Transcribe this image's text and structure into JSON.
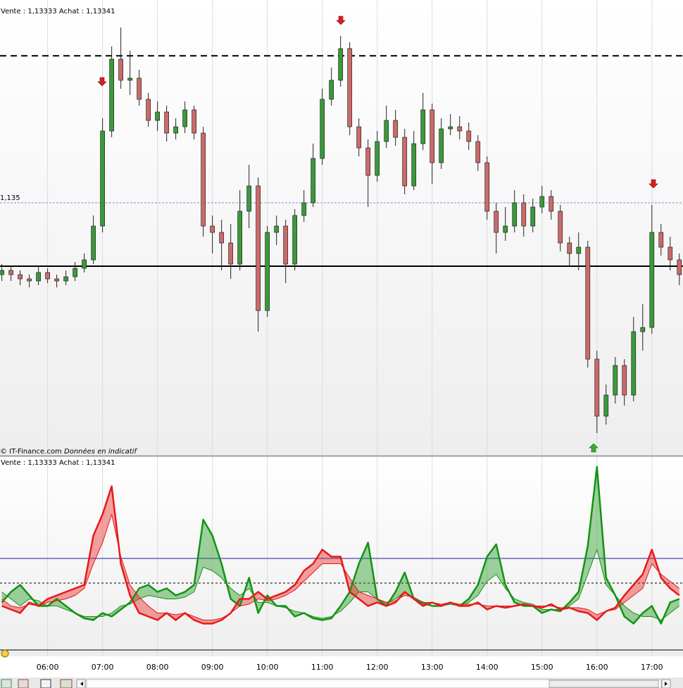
{
  "chart_data": [
    {
      "type": "candlestick",
      "title": "Vente : 1,13333 Achat : 1,13341",
      "source": "© IT-Finance.com",
      "note": "Données en indicatif",
      "up_color": "#3a9a3a",
      "down_color": "#cc6a6a",
      "x": [
        "05:10",
        "05:20",
        "05:30",
        "05:40",
        "05:50",
        "06:00",
        "06:10",
        "06:20",
        "06:30",
        "06:40",
        "06:50",
        "07:00",
        "07:10",
        "07:20",
        "07:30",
        "07:40",
        "07:50",
        "08:00",
        "08:10",
        "08:20",
        "08:30",
        "08:40",
        "08:50",
        "09:00",
        "09:10",
        "09:20",
        "09:30",
        "09:40",
        "09:50",
        "10:00",
        "10:10",
        "10:20",
        "10:30",
        "10:40",
        "10:50",
        "11:00",
        "11:10",
        "11:20",
        "11:30",
        "11:40",
        "11:50",
        "12:00",
        "12:10",
        "12:20",
        "12:30",
        "12:40",
        "12:50",
        "13:00",
        "13:10",
        "13:20",
        "13:30",
        "13:40",
        "13:50",
        "14:00",
        "14:10",
        "14:20",
        "14:30",
        "14:40",
        "14:50",
        "15:00",
        "15:10",
        "15:20",
        "15:30",
        "15:40",
        "15:50",
        "16:00",
        "16:10",
        "16:20",
        "16:30",
        "16:40",
        "16:50",
        "17:00",
        "17:10",
        "17:20",
        "17:30"
      ],
      "open": [
        1.1333,
        1.1334,
        1.1333,
        1.1332,
        1.13315,
        1.13335,
        1.1332,
        1.13315,
        1.13325,
        1.13345,
        1.13365,
        1.13445,
        1.1367,
        1.1384,
        1.1379,
        1.13795,
        1.13745,
        1.13695,
        1.13715,
        1.13665,
        1.1368,
        1.1372,
        1.13665,
        1.13445,
        1.1343,
        1.13405,
        1.13355,
        1.1348,
        1.1354,
        1.13245,
        1.1343,
        1.13445,
        1.13355,
        1.1347,
        1.135,
        1.13605,
        1.13745,
        1.1379,
        1.13865,
        1.1368,
        1.1363,
        1.13565,
        1.13645,
        1.13695,
        1.13655,
        1.1354,
        1.1364,
        1.1372,
        1.13595,
        1.13675,
        1.1368,
        1.1367,
        1.13645,
        1.13595,
        1.1348,
        1.1343,
        1.13445,
        1.135,
        1.13445,
        1.1349,
        1.13515,
        1.1348,
        1.13405,
        1.1338,
        1.13395,
        1.1313,
        1.12995,
        1.13045,
        1.13115,
        1.13045,
        1.13195,
        1.13205,
        1.1343,
        1.13395,
        1.13365
      ],
      "high": [
        1.13355,
        1.1335,
        1.1334,
        1.1333,
        1.1335,
        1.13345,
        1.1333,
        1.1334,
        1.1336,
        1.1338,
        1.1347,
        1.137,
        1.1387,
        1.13915,
        1.1386,
        1.13815,
        1.1376,
        1.1374,
        1.1373,
        1.137,
        1.1374,
        1.1373,
        1.1368,
        1.1347,
        1.1346,
        1.1345,
        1.1353,
        1.1359,
        1.1356,
        1.13445,
        1.1347,
        1.1346,
        1.13485,
        1.1353,
        1.1364,
        1.1377,
        1.1382,
        1.13895,
        1.1388,
        1.137,
        1.1365,
        1.1367,
        1.1373,
        1.1372,
        1.13675,
        1.1367,
        1.1376,
        1.13735,
        1.137,
        1.1371,
        1.13705,
        1.1369,
        1.1366,
        1.1361,
        1.135,
        1.1349,
        1.1353,
        1.1352,
        1.1351,
        1.1354,
        1.1353,
        1.13495,
        1.1342,
        1.1343,
        1.1341,
        1.1315,
        1.1307,
        1.13135,
        1.1313,
        1.1323,
        1.1326,
        1.13495,
        1.1345,
        1.1342,
        1.1338
      ],
      "low": [
        1.13315,
        1.13315,
        1.13305,
        1.133,
        1.13305,
        1.1331,
        1.133,
        1.13305,
        1.13315,
        1.13335,
        1.13355,
        1.1343,
        1.13655,
        1.1377,
        1.13755,
        1.1373,
        1.1368,
        1.1367,
        1.13645,
        1.1365,
        1.13665,
        1.1365,
        1.1342,
        1.1338,
        1.1334,
        1.1332,
        1.1334,
        1.1344,
        1.13195,
        1.1323,
        1.134,
        1.1331,
        1.1334,
        1.13455,
        1.1349,
        1.1359,
        1.1373,
        1.13775,
        1.1366,
        1.1361,
        1.1349,
        1.1355,
        1.1363,
        1.13635,
        1.1352,
        1.1353,
        1.13625,
        1.13545,
        1.1358,
        1.1366,
        1.1365,
        1.13625,
        1.13575,
        1.1346,
        1.1338,
        1.1341,
        1.1343,
        1.1342,
        1.1343,
        1.13475,
        1.1346,
        1.13385,
        1.1335,
        1.1334,
        1.1311,
        1.12955,
        1.12975,
        1.13025,
        1.1302,
        1.1303,
        1.1315,
        1.1319,
        1.13375,
        1.1334,
        1.13305
      ],
      "close": [
        1.1334,
        1.1333,
        1.1332,
        1.13315,
        1.13335,
        1.1332,
        1.13315,
        1.13325,
        1.13345,
        1.13365,
        1.13445,
        1.1367,
        1.1384,
        1.1379,
        1.13795,
        1.13745,
        1.13695,
        1.13715,
        1.13665,
        1.1368,
        1.1372,
        1.13665,
        1.13445,
        1.1343,
        1.13405,
        1.13355,
        1.1348,
        1.1354,
        1.13245,
        1.1343,
        1.13445,
        1.13355,
        1.1347,
        1.135,
        1.13605,
        1.13745,
        1.1379,
        1.13865,
        1.1368,
        1.1363,
        1.13565,
        1.13645,
        1.13695,
        1.13655,
        1.1354,
        1.1364,
        1.1372,
        1.13595,
        1.13675,
        1.1368,
        1.1367,
        1.13645,
        1.13595,
        1.1348,
        1.1343,
        1.13445,
        1.135,
        1.13445,
        1.1349,
        1.13515,
        1.1348,
        1.13405,
        1.1338,
        1.13395,
        1.1313,
        1.12995,
        1.13045,
        1.13115,
        1.13045,
        1.13195,
        1.13205,
        1.1343,
        1.13395,
        1.13365,
        1.1333
      ],
      "xlim": [
        "05:08",
        "17:34"
      ],
      "ylim": [
        1.12905,
        1.1398
      ],
      "yticks": [
        {
          "value": 1.135,
          "label": "1,135"
        }
      ],
      "levels": [
        {
          "value": 1.13848,
          "color": "#000000",
          "style": "dashed"
        },
        {
          "value": 1.1335,
          "color": "#000000",
          "style": "solid"
        },
        {
          "value": 1.135,
          "color": "#7f8fd8",
          "style": "dotted"
        }
      ]
    },
    {
      "type": "line",
      "title": "Vente : 1,13333 Achat : 1,13341",
      "x": [
        "05:10",
        "05:20",
        "05:30",
        "05:40",
        "05:50",
        "06:00",
        "06:10",
        "06:20",
        "06:30",
        "06:40",
        "06:50",
        "07:00",
        "07:10",
        "07:20",
        "07:30",
        "07:40",
        "07:50",
        "08:00",
        "08:10",
        "08:20",
        "08:30",
        "08:40",
        "08:50",
        "09:00",
        "09:10",
        "09:20",
        "09:30",
        "09:40",
        "09:50",
        "10:00",
        "10:10",
        "10:20",
        "10:30",
        "10:40",
        "10:50",
        "11:00",
        "11:10",
        "11:20",
        "11:30",
        "11:40",
        "11:50",
        "12:00",
        "12:10",
        "12:20",
        "12:30",
        "12:40",
        "12:50",
        "13:00",
        "13:10",
        "13:20",
        "13:30",
        "13:40",
        "13:50",
        "14:00",
        "14:10",
        "14:20",
        "14:30",
        "14:40",
        "14:50",
        "15:00",
        "15:10",
        "15:20",
        "15:30",
        "15:40",
        "15:50",
        "16:00",
        "16:10",
        "16:20",
        "16:30",
        "16:40",
        "16:50",
        "17:00",
        "17:10",
        "17:20",
        "17:30"
      ],
      "series": [
        {
          "color": "#139313",
          "width": 2.5,
          "values": [
            27,
            33,
            37,
            31,
            25,
            25,
            29,
            25,
            21,
            18,
            17,
            21,
            19,
            23,
            27,
            35,
            37,
            33,
            35,
            31,
            33,
            37,
            74,
            65,
            49,
            29,
            25,
            41,
            21,
            31,
            25,
            25,
            19,
            21,
            18,
            17,
            18,
            25,
            33,
            49,
            61,
            29,
            25,
            33,
            44,
            29,
            27,
            25,
            25,
            27,
            25,
            29,
            37,
            53,
            60,
            37,
            27,
            25,
            25,
            21,
            23,
            22,
            27,
            33,
            59,
            104,
            41,
            31,
            19,
            15,
            21,
            25,
            15,
            27,
            29
          ]
        },
        {
          "color": "#139313",
          "width": 1,
          "values": [
            33,
            29,
            25,
            29,
            28,
            25,
            25,
            23,
            21,
            19,
            19,
            19,
            21,
            25,
            26,
            29,
            31,
            30,
            29,
            29,
            30,
            33,
            47,
            45,
            41,
            35,
            31,
            35,
            27,
            27,
            25,
            24,
            22,
            21,
            19,
            18,
            19,
            22,
            27,
            33,
            33,
            29,
            27,
            29,
            33,
            29,
            26,
            25,
            25,
            26,
            25,
            27,
            31,
            39,
            43,
            35,
            29,
            27,
            26,
            23,
            23,
            23,
            25,
            29,
            43,
            57,
            37,
            31,
            25,
            21,
            19,
            19,
            17,
            21,
            25
          ]
        },
        {
          "color": "#e81818",
          "width": 2.5,
          "values": [
            25,
            23,
            21,
            27,
            25,
            29,
            31,
            33,
            35,
            37,
            65,
            77,
            93,
            49,
            31,
            21,
            19,
            17,
            21,
            17,
            21,
            17,
            15,
            15,
            17,
            21,
            29,
            29,
            33,
            29,
            31,
            33,
            37,
            45,
            49,
            57,
            53,
            53,
            33,
            29,
            25,
            27,
            25,
            27,
            33,
            29,
            25,
            27,
            25,
            27,
            25,
            25,
            27,
            23,
            25,
            24,
            25,
            26,
            25,
            24,
            26,
            23,
            24,
            22,
            21,
            17,
            22,
            24,
            31,
            37,
            43,
            57,
            41,
            35,
            31
          ]
        },
        {
          "color": "#e81818",
          "width": 1,
          "values": [
            29,
            25,
            24,
            26,
            25,
            27,
            28,
            29,
            31,
            35,
            49,
            61,
            77,
            53,
            37,
            30,
            25,
            21,
            21,
            20,
            21,
            19,
            17,
            17,
            18,
            21,
            25,
            26,
            29,
            28,
            29,
            31,
            34,
            39,
            44,
            49,
            49,
            49,
            41,
            33,
            31,
            29,
            27,
            28,
            31,
            30,
            27,
            27,
            26,
            27,
            26,
            26,
            26,
            25,
            25,
            25,
            25,
            26,
            25,
            25,
            25,
            24,
            24,
            24,
            23,
            20,
            22,
            23,
            27,
            31,
            35,
            49,
            43,
            39,
            35
          ]
        }
      ],
      "xlim": [
        "05:08",
        "17:34"
      ],
      "xticks": [
        "06:00",
        "07:00",
        "08:00",
        "09:00",
        "10:00",
        "11:00",
        "12:00",
        "13:00",
        "14:00",
        "15:00",
        "16:00",
        "17:00"
      ],
      "ylim": [
        0,
        110
      ],
      "levels": [
        {
          "value": 52,
          "color": "#1a1aa0",
          "style": "solid"
        },
        {
          "value": 38,
          "color": "#000000",
          "style": "dashed"
        },
        {
          "value": 0,
          "color": "#000000",
          "style": "solid"
        }
      ]
    }
  ]
}
